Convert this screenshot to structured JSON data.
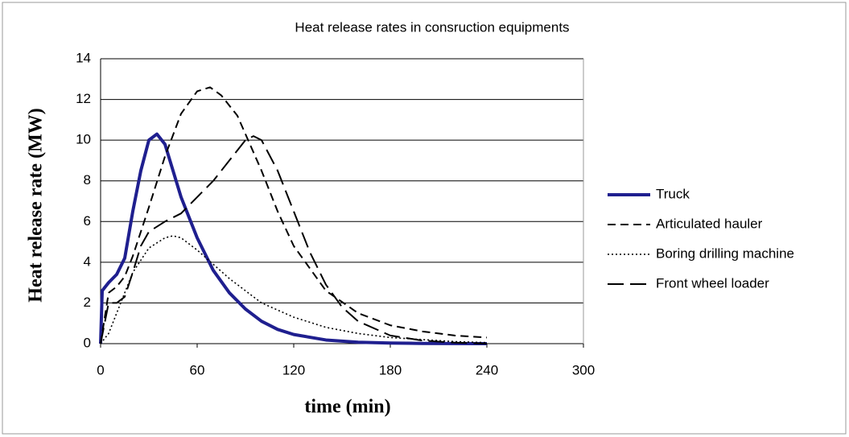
{
  "chart_data": {
    "type": "line",
    "title": "Heat release rates in consruction equipments",
    "xlabel": "time (min)",
    "ylabel": "Heat release rate (MW)",
    "xlim": [
      0,
      300
    ],
    "xticks": [
      0,
      60,
      120,
      180,
      240,
      300
    ],
    "ylim": [
      0,
      14
    ],
    "yticks": [
      0,
      2,
      4,
      6,
      8,
      10,
      12,
      14
    ],
    "grid": true,
    "legend": "right",
    "series": [
      {
        "name": "Truck",
        "color": "#1f1f8f",
        "line_style": "solid",
        "x": [
          0,
          1,
          5,
          10,
          15,
          20,
          25,
          30,
          35,
          40,
          45,
          50,
          60,
          70,
          80,
          90,
          100,
          110,
          120,
          140,
          160,
          180,
          200,
          240
        ],
        "values": [
          0,
          2.6,
          3.0,
          3.4,
          4.2,
          6.5,
          8.5,
          10.0,
          10.3,
          9.8,
          8.5,
          7.2,
          5.2,
          3.6,
          2.5,
          1.7,
          1.1,
          0.7,
          0.45,
          0.18,
          0.07,
          0.03,
          0.01,
          0
        ]
      },
      {
        "name": "Articulated hauler",
        "color": "#000000",
        "line_style": "dashed",
        "x": [
          0,
          5,
          10,
          15,
          20,
          30,
          40,
          50,
          60,
          68,
          75,
          85,
          100,
          110,
          120,
          140,
          160,
          180,
          200,
          220,
          240
        ],
        "values": [
          0,
          2.5,
          2.8,
          3.3,
          4.3,
          6.7,
          9.2,
          11.3,
          12.4,
          12.6,
          12.2,
          11.2,
          8.5,
          6.5,
          4.8,
          2.6,
          1.5,
          0.9,
          0.6,
          0.4,
          0.3
        ]
      },
      {
        "name": "Boring drilling machine",
        "color": "#000000",
        "line_style": "dotted",
        "x": [
          0,
          5,
          10,
          15,
          20,
          30,
          40,
          45,
          50,
          60,
          70,
          80,
          90,
          100,
          120,
          140,
          160,
          180,
          200,
          220,
          240
        ],
        "values": [
          0,
          0.5,
          1.5,
          2.5,
          3.5,
          4.7,
          5.2,
          5.3,
          5.2,
          4.6,
          3.9,
          3.2,
          2.6,
          2.0,
          1.3,
          0.8,
          0.5,
          0.3,
          0.2,
          0.1,
          0.05
        ]
      },
      {
        "name": "Front wheel loader",
        "color": "#000000",
        "line_style": "longdash",
        "x": [
          0,
          5,
          10,
          15,
          20,
          25,
          30,
          40,
          50,
          60,
          70,
          80,
          90,
          95,
          100,
          110,
          120,
          130,
          140,
          150,
          160,
          180,
          200,
          220,
          240
        ],
        "values": [
          0,
          2.0,
          2.0,
          2.3,
          3.5,
          4.8,
          5.5,
          6.0,
          6.4,
          7.2,
          8.0,
          9.0,
          10.0,
          10.2,
          10.0,
          8.5,
          6.5,
          4.5,
          2.9,
          1.8,
          1.1,
          0.4,
          0.15,
          0.05,
          0
        ]
      }
    ]
  }
}
